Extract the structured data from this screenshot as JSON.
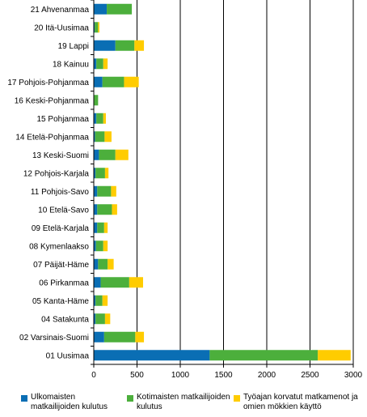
{
  "chart_data": {
    "type": "bar",
    "orientation": "horizontal",
    "stacked": true,
    "categories": [
      "21 Ahvenanmaa",
      "20 Itä-Uusimaa",
      "19 Lappi",
      "18 Kainuu",
      "17 Pohjois-Pohjanmaa",
      "16 Keski-Pohjanmaa",
      "15 Pohjanmaa",
      "14 Etelä-Pohjanmaa",
      "13 Keski-Suomi",
      "12 Pohjois-Karjala",
      "11 Pohjois-Savo",
      "10 Etelä-Savo",
      "09 Etelä-Karjala",
      "08 Kymenlaakso",
      "07 Päijät-Häme",
      "06 Pirkanmaa",
      "05 Kanta-Häme",
      "04 Satakunta",
      "02 Varsinais-Suomi",
      "01 Uusimaa"
    ],
    "series": [
      {
        "name": "Ulkomaisten matkailijoiden kulutus",
        "color": "#0a6eb4",
        "values": [
          150,
          10,
          250,
          30,
          100,
          5,
          30,
          15,
          60,
          20,
          40,
          40,
          40,
          25,
          50,
          80,
          20,
          20,
          120,
          1340
        ]
      },
      {
        "name": "Kotimaisten matkailijoiden kulutus",
        "color": "#4caf3c",
        "values": [
          290,
          40,
          220,
          80,
          250,
          45,
          80,
          110,
          190,
          110,
          160,
          170,
          80,
          85,
          110,
          330,
          80,
          110,
          360,
          1250
        ]
      },
      {
        "name": "Työajan korvatut matkamenot ja omien mökkien käyttö",
        "color": "#ffcc00",
        "values": [
          0,
          15,
          110,
          50,
          170,
          0,
          30,
          80,
          150,
          40,
          60,
          60,
          40,
          50,
          70,
          160,
          60,
          60,
          100,
          380
        ]
      }
    ],
    "xlim": [
      0,
      3000
    ],
    "xticks": [
      0,
      500,
      1000,
      1500,
      2000,
      2500,
      3000
    ],
    "title": "",
    "xlabel": "",
    "ylabel": "",
    "grid": "vertical",
    "legend_position": "bottom"
  }
}
